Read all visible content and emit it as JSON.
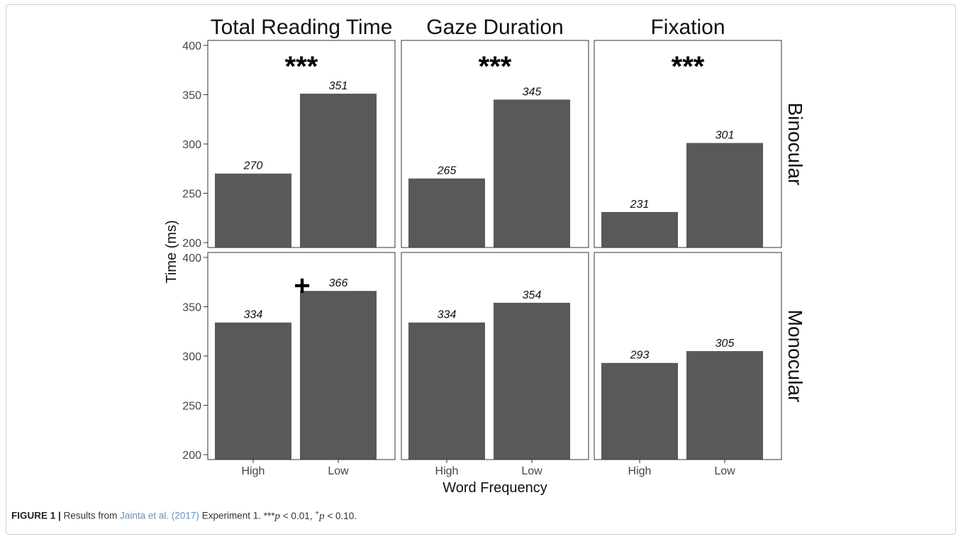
{
  "chart_data": {
    "type": "bar",
    "y_axis_label": "Time (ms)",
    "x_axis_label": "Word Frequency",
    "ylim": [
      195,
      405
    ],
    "y_ticks": [
      200,
      250,
      300,
      350,
      400
    ],
    "categories": [
      "High",
      "Low"
    ],
    "columns": [
      "Total Reading Time",
      "Gaze Duration",
      "Fixation"
    ],
    "rows": [
      "Binocular",
      "Monocular"
    ],
    "bar_color": "#595959",
    "panels": [
      {
        "column": "Total Reading Time",
        "row": "Binocular",
        "values": [
          270,
          351
        ],
        "value_labels": [
          "270",
          "351"
        ],
        "significance": "***"
      },
      {
        "column": "Gaze Duration",
        "row": "Binocular",
        "values": [
          265,
          345
        ],
        "value_labels": [
          "265",
          "345"
        ],
        "significance": "***"
      },
      {
        "column": "Fixation",
        "row": "Binocular",
        "values": [
          231,
          301
        ],
        "value_labels": [
          "231",
          "301"
        ],
        "significance": "***"
      },
      {
        "column": "Total Reading Time",
        "row": "Monocular",
        "values": [
          334,
          366
        ],
        "value_labels": [
          "334",
          "366"
        ],
        "significance": "+"
      },
      {
        "column": "Gaze Duration",
        "row": "Monocular",
        "values": [
          334,
          354
        ],
        "value_labels": [
          "334",
          "354"
        ],
        "significance": ""
      },
      {
        "column": "Fixation",
        "row": "Monocular",
        "values": [
          293,
          305
        ],
        "value_labels": [
          "293",
          "305"
        ],
        "significance": ""
      }
    ]
  },
  "caption": {
    "label": "FIGURE 1 |",
    "text_before": "Results from",
    "reference": "Jainta et al. (2017)",
    "text_after": "Experiment 1.",
    "sig1_mark": "***",
    "sig1_var": "p",
    "sig1_rel": "< 0.01,",
    "sig2_mark": "+",
    "sig2_var": "p",
    "sig2_rel": "< 0.10."
  }
}
